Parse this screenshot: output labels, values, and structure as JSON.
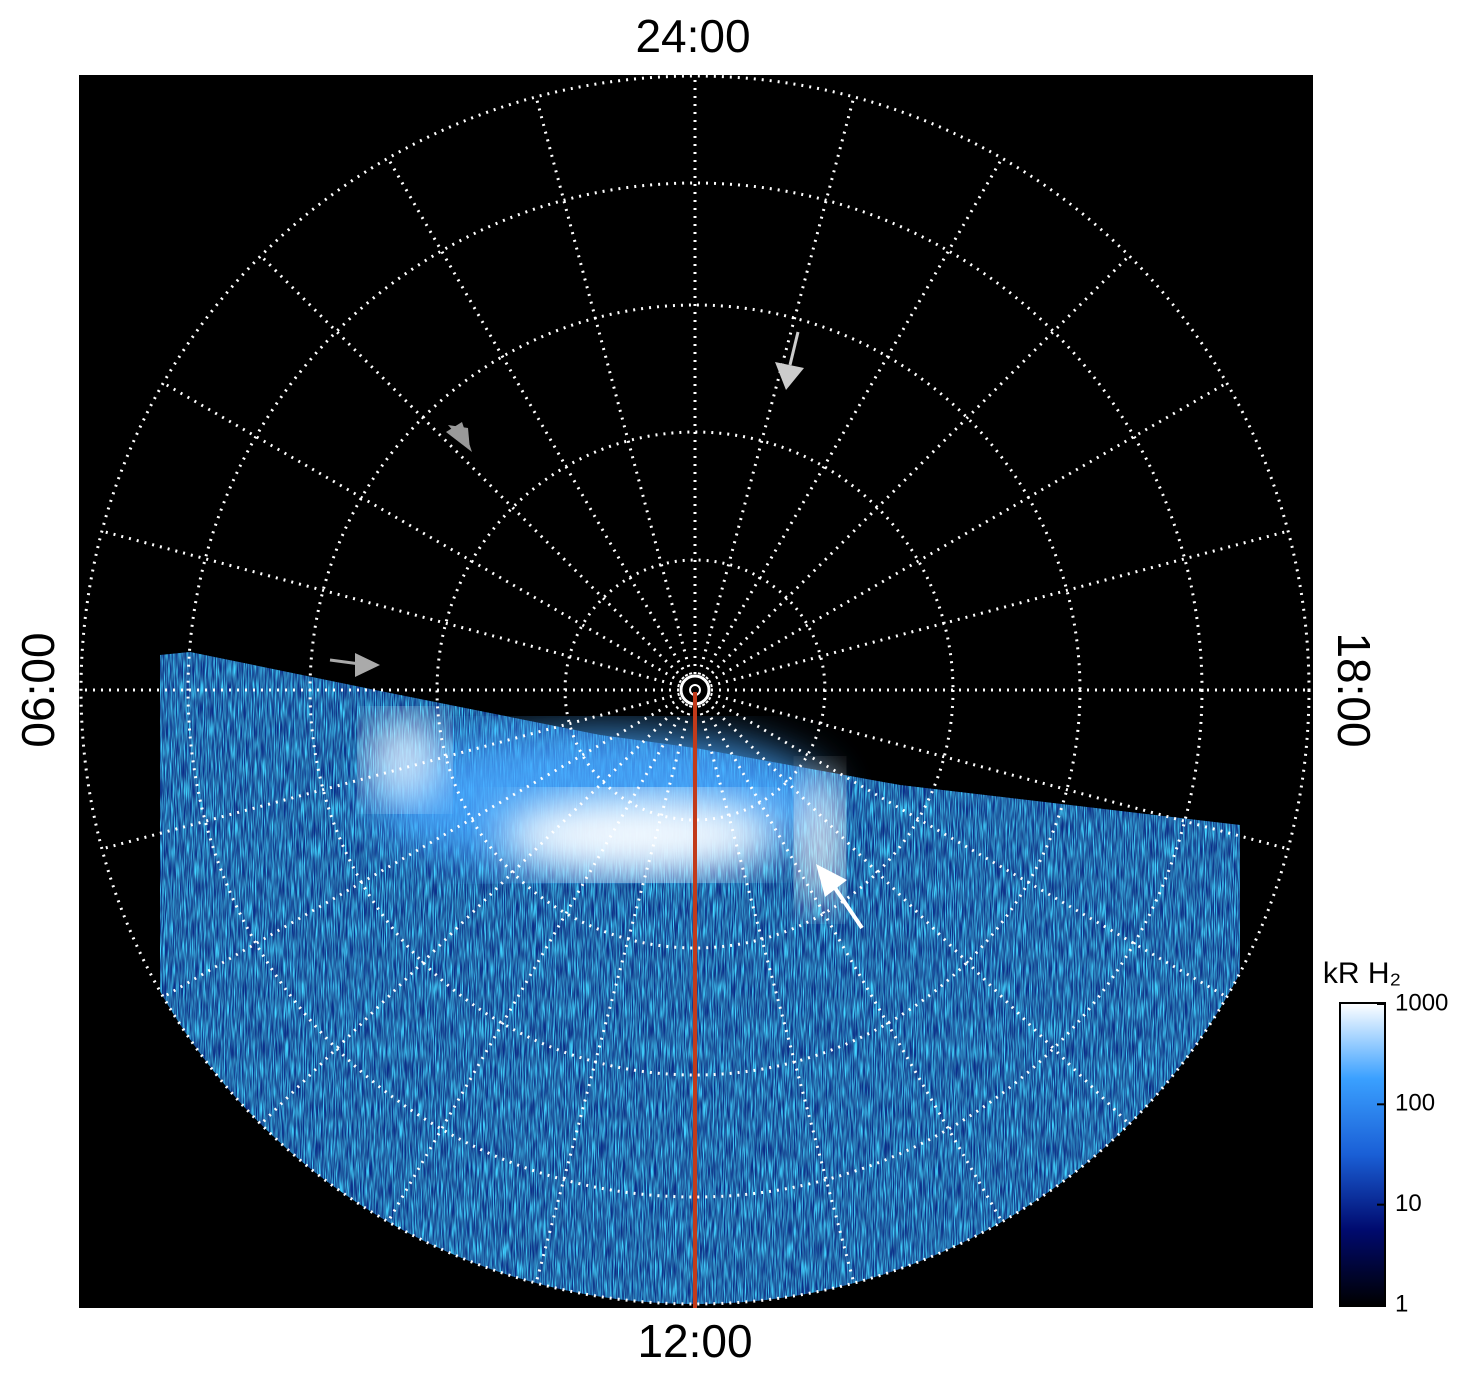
{
  "chart_data": {
    "type": "polar-image",
    "direction_labels": {
      "top": "24:00",
      "bottom": "12:00",
      "left": "06:00",
      "right": "18:00"
    },
    "colorbar": {
      "label": "kR H₂",
      "ylim": [
        1,
        1000
      ],
      "yticks": [
        1,
        10,
        100,
        1000
      ],
      "log_scale": true,
      "colormap": [
        "#000000",
        "#000a6e",
        "#1a5fd6",
        "#3aa0ff",
        "#ffffff"
      ]
    },
    "meridian_color": "#c23a1a"
  }
}
